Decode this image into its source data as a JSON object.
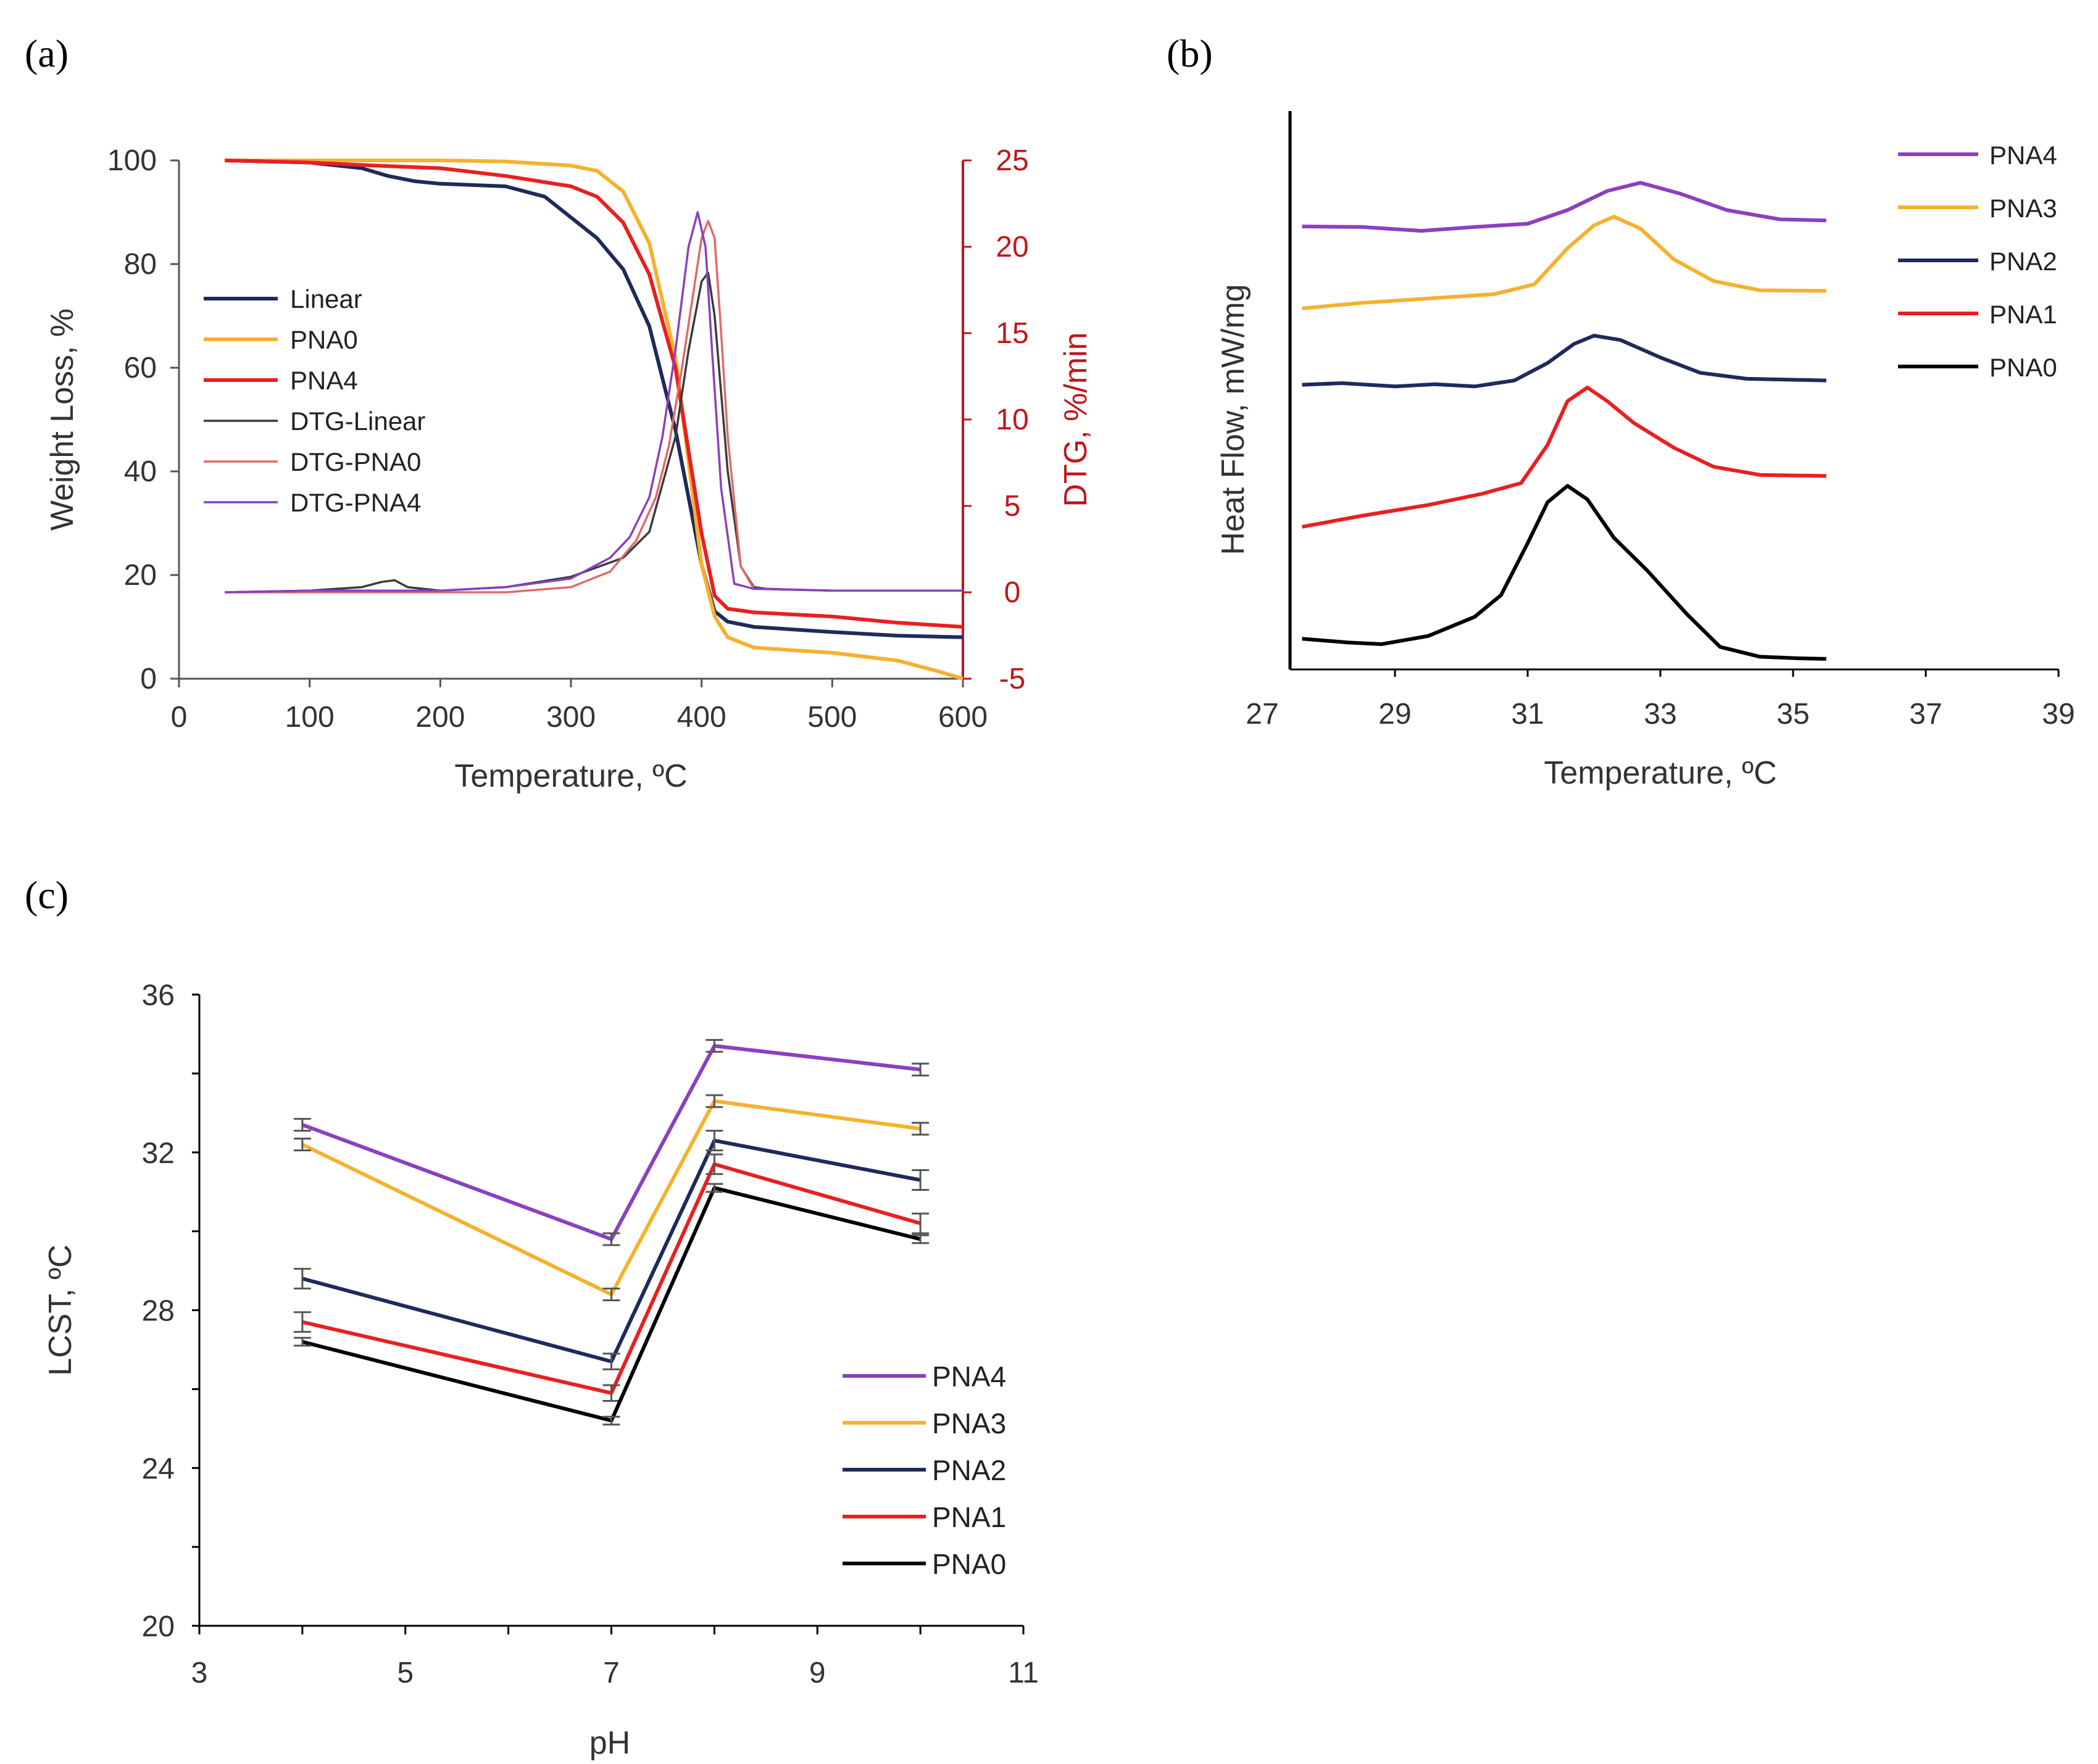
{
  "colors": {
    "linear": "#1f2a5c",
    "pna0_yellow": "#f5b12d",
    "pna4_red": "#e82020",
    "dtg_linear": "#3a3a3a",
    "dtg_pna0": "#e06a6a",
    "dtg_pna4": "#8a40c0",
    "pna4_purple": "#8a40c0",
    "pna3_yellow": "#f5b12d",
    "pna2_navy": "#1f2a5c",
    "pna1_red": "#e82020",
    "pna0_black": "#000000",
    "dtg_axis": "#c0161c",
    "axis": "#555555"
  },
  "chart_data": [
    {
      "panel": "(a)",
      "type": "line",
      "xlabel": "Temperature, ºC",
      "ylabel": "Weight Loss, %",
      "y2label": "DTG, %/min",
      "xlim": [
        0,
        600
      ],
      "ylim": [
        0,
        100
      ],
      "y2lim": [
        -5,
        25
      ],
      "xticks": [
        "0",
        "100",
        "200",
        "300",
        "400",
        "500",
        "600"
      ],
      "yticks": [
        "0",
        "20",
        "40",
        "60",
        "80",
        "100"
      ],
      "y2ticks": [
        "-5",
        "0",
        "5",
        "10",
        "15",
        "20",
        "25"
      ],
      "legend": [
        "Linear",
        "PNA0",
        "PNA4",
        "DTG-Linear",
        "DTG-PNA0",
        "DTG-PNA4"
      ],
      "series": [
        {
          "name": "Linear",
          "axis": "left",
          "color_key": "linear",
          "x": [
            35,
            100,
            140,
            160,
            180,
            200,
            250,
            280,
            300,
            320,
            340,
            360,
            380,
            400,
            410,
            420,
            440,
            500,
            550,
            600
          ],
          "y": [
            100,
            99.6,
            98.5,
            97,
            96,
            95.5,
            95,
            93,
            89,
            85,
            79,
            68,
            48,
            22,
            13,
            11,
            10,
            9,
            8.3,
            8
          ]
        },
        {
          "name": "PNA0",
          "axis": "left",
          "color_key": "pna0_yellow",
          "x": [
            35,
            100,
            200,
            250,
            300,
            320,
            340,
            360,
            380,
            400,
            410,
            420,
            440,
            500,
            550,
            580,
            600
          ],
          "y": [
            100,
            100,
            100,
            99.8,
            99,
            98,
            94,
            84,
            62,
            22,
            12,
            8,
            6,
            5,
            3.5,
            1.5,
            0
          ]
        },
        {
          "name": "PNA4",
          "axis": "left",
          "color_key": "pna4_red",
          "x": [
            35,
            100,
            150,
            200,
            250,
            300,
            320,
            340,
            360,
            380,
            400,
            410,
            420,
            440,
            500,
            550,
            600
          ],
          "y": [
            100,
            99.6,
            99,
            98.5,
            97,
            95,
            93,
            88,
            78,
            60,
            28,
            16,
            13.5,
            12.8,
            12,
            10.8,
            10
          ]
        },
        {
          "name": "DTG-Linear",
          "axis": "right",
          "color_key": "dtg_linear",
          "x": [
            35,
            100,
            140,
            155,
            165,
            175,
            200,
            250,
            300,
            340,
            360,
            380,
            390,
            400,
            405,
            410,
            420,
            430,
            440,
            450,
            500,
            600
          ],
          "y": [
            0,
            0.1,
            0.3,
            0.6,
            0.7,
            0.3,
            0.1,
            0.3,
            0.9,
            2,
            3.5,
            9,
            14,
            18,
            18.5,
            16,
            7,
            1.5,
            0.3,
            0.2,
            0.1,
            0.1
          ]
        },
        {
          "name": "DTG-PNA0",
          "axis": "right",
          "color_key": "dtg_pna0",
          "x": [
            35,
            100,
            200,
            250,
            300,
            330,
            350,
            365,
            375,
            385,
            395,
            400,
            405,
            410,
            415,
            420,
            430,
            440,
            500,
            600
          ],
          "y": [
            0,
            0,
            0,
            0,
            0.3,
            1.2,
            3,
            5.5,
            8.5,
            13,
            18,
            20.5,
            21.5,
            20.5,
            15,
            9,
            1.5,
            0.2,
            0.1,
            0.1
          ]
        },
        {
          "name": "DTG-PNA4",
          "axis": "right",
          "color_key": "dtg_pna4",
          "x": [
            35,
            100,
            200,
            250,
            300,
            330,
            345,
            360,
            370,
            380,
            390,
            397,
            403,
            408,
            415,
            425,
            440,
            500,
            600
          ],
          "y": [
            0,
            0.1,
            0.1,
            0.3,
            0.8,
            2,
            3.2,
            5.5,
            9,
            14,
            20,
            22,
            20,
            14,
            6,
            0.5,
            0.2,
            0.1,
            0.1
          ]
        }
      ]
    },
    {
      "panel": "(b)",
      "type": "line",
      "xlabel": "Temperature, ºC",
      "ylabel": "Heat Flow, mW/mg",
      "xlim": [
        27,
        39
      ],
      "xticks": [
        "27",
        "29",
        "31",
        "33",
        "35",
        "37",
        "39"
      ],
      "y_units": "arbitrary (stacked, offset curves; no y tick labels)",
      "ylim": [
        0,
        100
      ],
      "legend": [
        "PNA4",
        "PNA3",
        "PNA2",
        "PNA1",
        "PNA0"
      ],
      "series": [
        {
          "name": "PNA4",
          "color_key": "pna4_purple",
          "x": [
            27.6,
            28.5,
            29.4,
            30.2,
            31,
            31.6,
            32.2,
            32.7,
            33.3,
            34,
            34.8,
            35.5
          ],
          "y": [
            80,
            79.9,
            79.2,
            79.9,
            80.5,
            83,
            86.5,
            88,
            86,
            83,
            81.3,
            81.1
          ]
        },
        {
          "name": "PNA3",
          "color_key": "pna3_yellow",
          "x": [
            27.6,
            28.5,
            29.5,
            30.5,
            31.1,
            31.6,
            32,
            32.3,
            32.7,
            33.2,
            33.8,
            34.5,
            35.5
          ],
          "y": [
            65,
            66,
            66.8,
            67.6,
            69.4,
            76,
            80.2,
            81.8,
            79.6,
            74,
            70,
            68.3,
            68.2
          ]
        },
        {
          "name": "PNA2",
          "color_key": "pna2_navy",
          "x": [
            27.6,
            28.2,
            29,
            29.6,
            30.2,
            30.8,
            31.3,
            31.7,
            32,
            32.4,
            33,
            33.6,
            34.3,
            35.5
          ],
          "y": [
            51,
            51.3,
            50.7,
            51.1,
            50.7,
            51.8,
            55,
            58.5,
            60,
            59.2,
            56,
            53.2,
            52.1,
            51.8
          ]
        },
        {
          "name": "PNA1",
          "color_key": "pna1_red",
          "x": [
            27.6,
            28.5,
            29.5,
            30.3,
            30.9,
            31.3,
            31.6,
            31.9,
            32.2,
            32.6,
            33.2,
            33.8,
            34.5,
            35.5
          ],
          "y": [
            25,
            27,
            29,
            31,
            33,
            40,
            48,
            50.5,
            48,
            44,
            39.5,
            36,
            34.5,
            34.3
          ]
        },
        {
          "name": "PNA0",
          "color_key": "pna0_black",
          "x": [
            27.6,
            28.3,
            28.8,
            29.5,
            30.2,
            30.6,
            31,
            31.3,
            31.6,
            31.9,
            32.3,
            32.8,
            33.4,
            33.9,
            34.5,
            35.1,
            35.5
          ],
          "y": [
            4.5,
            3.8,
            3.5,
            5,
            8.5,
            12.5,
            22,
            29.5,
            32.5,
            30,
            23,
            17,
            9,
            3,
            1.2,
            0.9,
            0.8
          ]
        }
      ]
    },
    {
      "panel": "(c)",
      "type": "line",
      "xlabel": "pH",
      "ylabel": "LCST, ºC",
      "xlim": [
        3,
        11
      ],
      "ylim": [
        20,
        36
      ],
      "xticks": [
        "3",
        "5",
        "7",
        "9",
        "11"
      ],
      "yticks": [
        "20",
        "24",
        "28",
        "32",
        "36"
      ],
      "legend": [
        "PNA4",
        "PNA3",
        "PNA2",
        "PNA1",
        "PNA0"
      ],
      "x": [
        4,
        7,
        8,
        10
      ],
      "series": [
        {
          "name": "PNA4",
          "color_key": "pna4_purple",
          "values": [
            32.7,
            29.8,
            34.7,
            34.1
          ],
          "errors": [
            0.15,
            0.15,
            0.15,
            0.15
          ]
        },
        {
          "name": "PNA3",
          "color_key": "pna3_yellow",
          "values": [
            32.2,
            28.4,
            33.3,
            32.6
          ],
          "errors": [
            0.15,
            0.15,
            0.15,
            0.15
          ]
        },
        {
          "name": "PNA2",
          "color_key": "pna2_navy",
          "values": [
            28.8,
            26.7,
            32.3,
            31.3
          ],
          "errors": [
            0.25,
            0.2,
            0.25,
            0.25
          ]
        },
        {
          "name": "PNA1",
          "color_key": "pna1_red",
          "values": [
            27.7,
            25.9,
            31.7,
            30.2
          ],
          "errors": [
            0.25,
            0.2,
            0.25,
            0.25
          ]
        },
        {
          "name": "PNA0",
          "color_key": "pna0_black",
          "values": [
            27.2,
            25.2,
            31.1,
            29.8
          ],
          "errors": [
            0.1,
            0.1,
            0.1,
            0.1
          ]
        }
      ]
    }
  ]
}
